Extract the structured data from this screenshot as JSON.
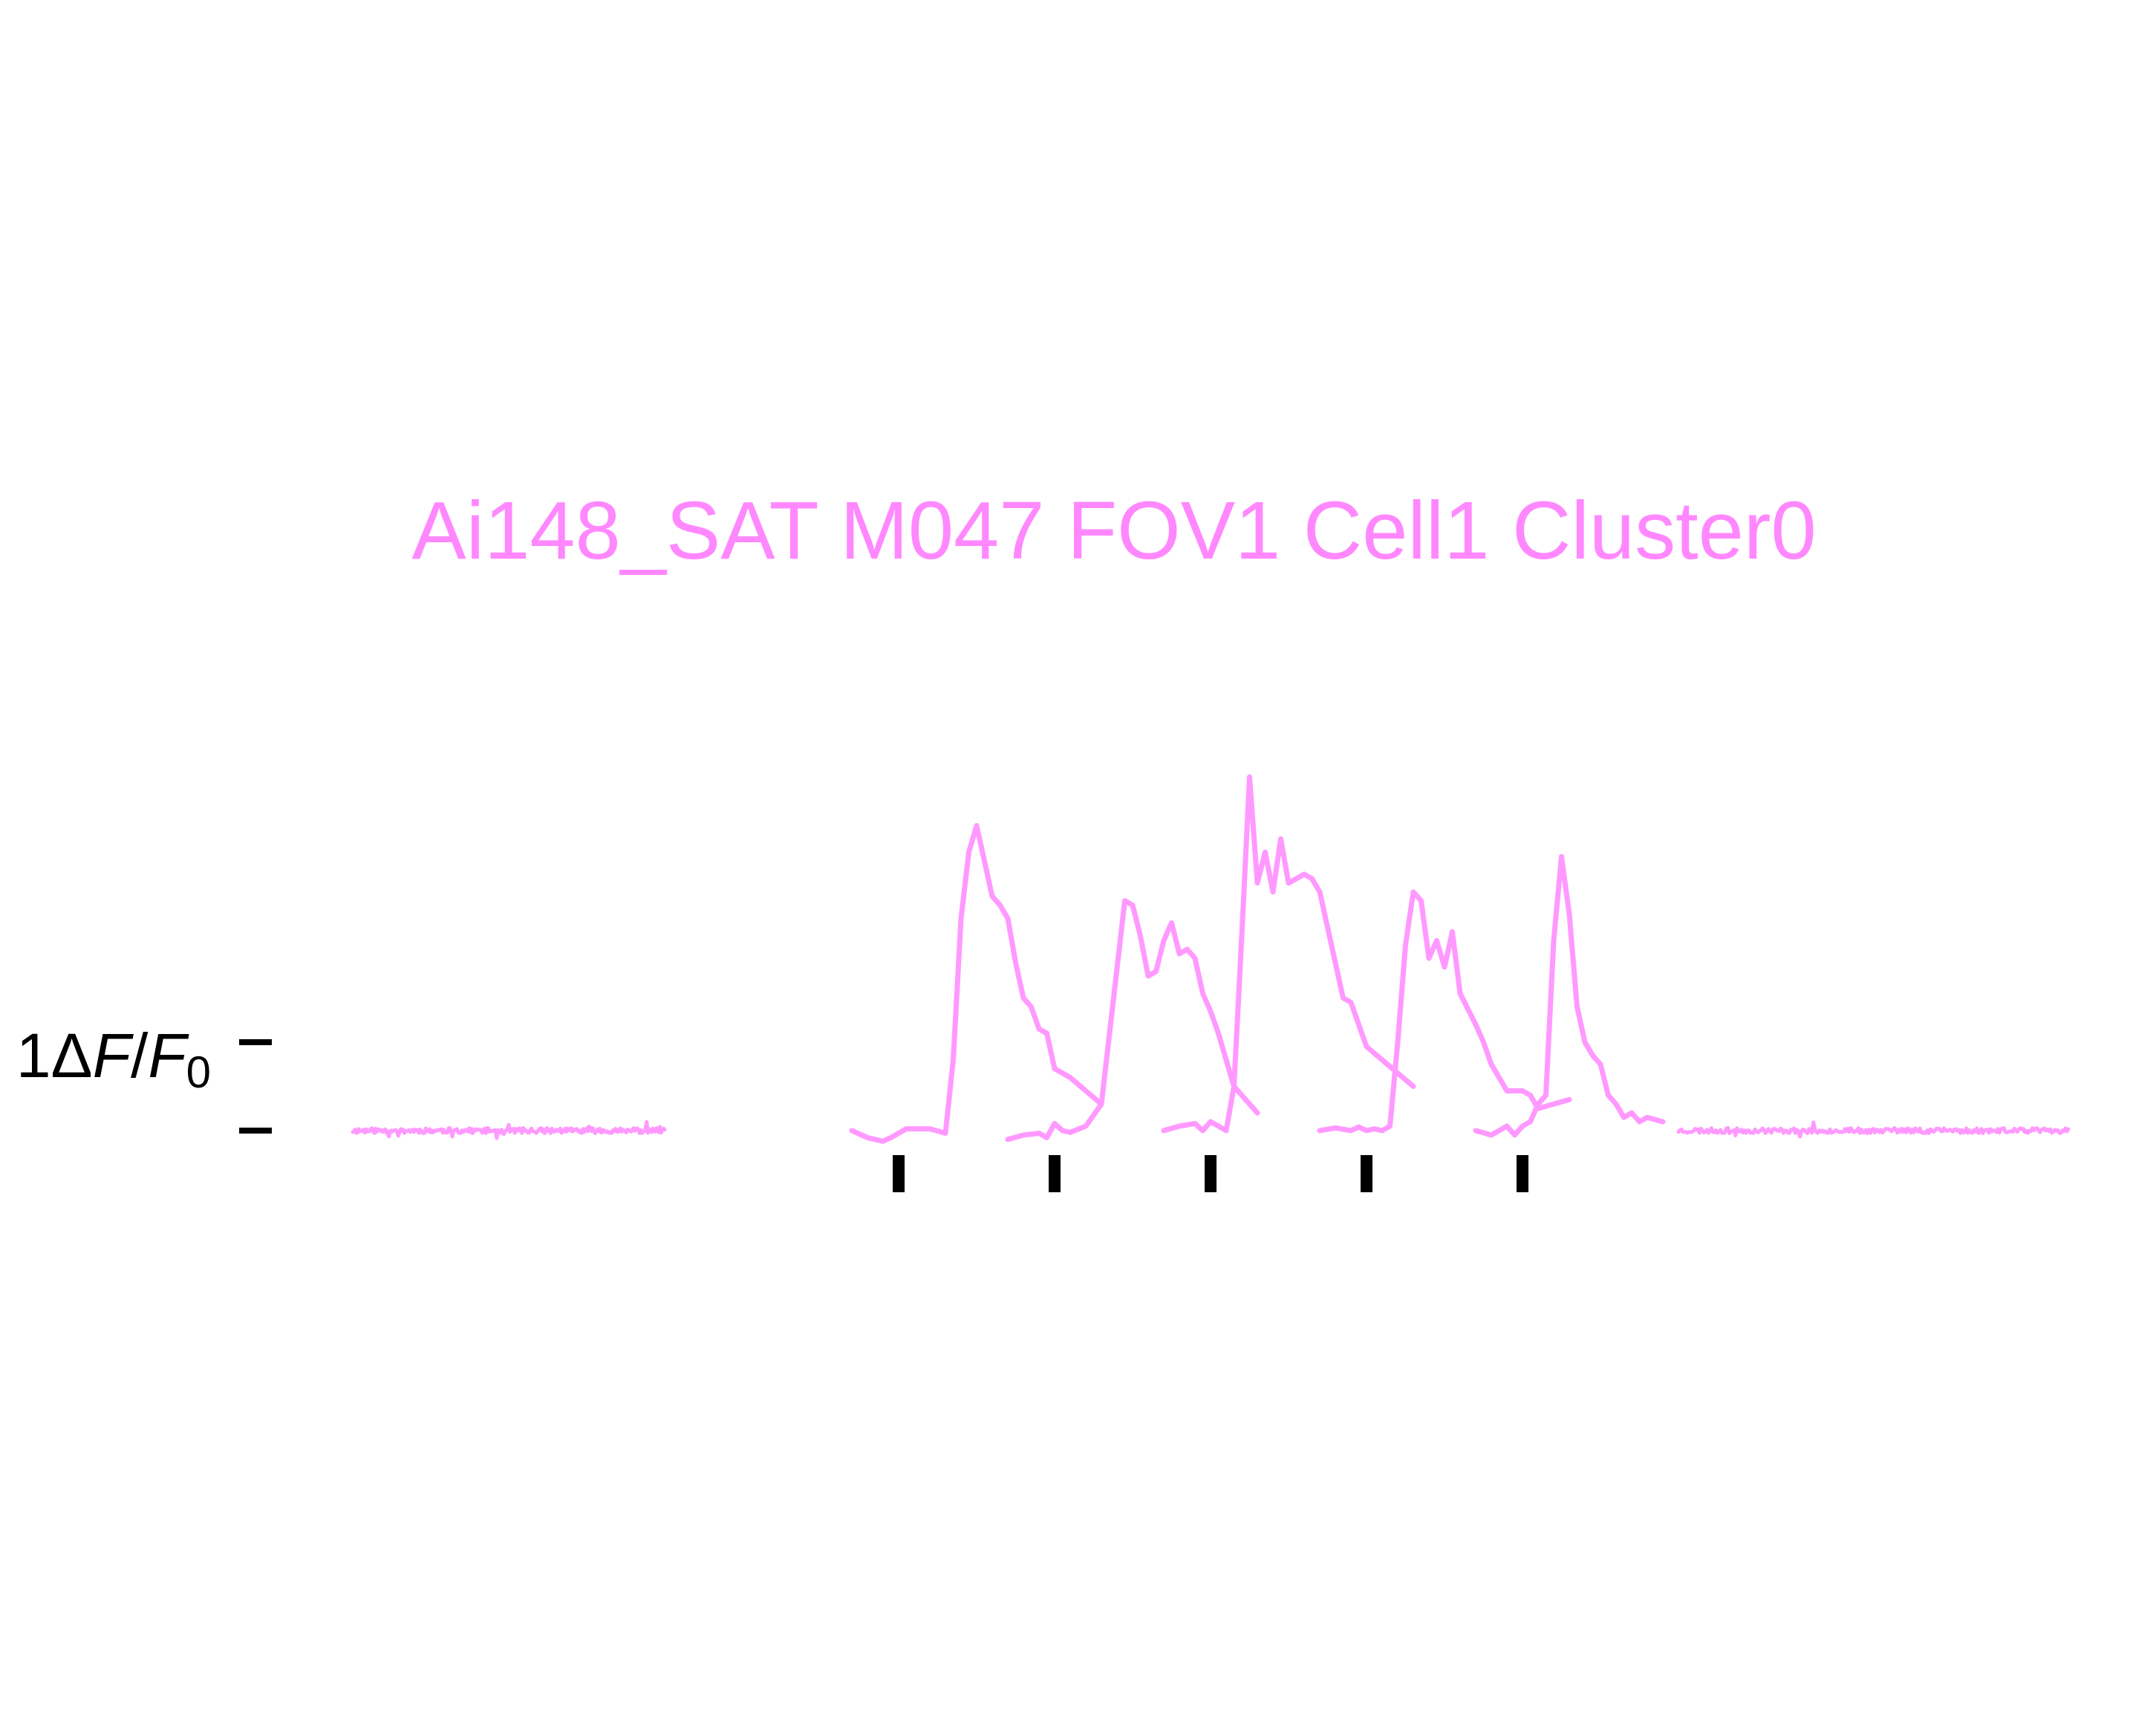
{
  "chart_data": {
    "type": "line",
    "title": "Ai148_SAT M047 FOV1 Cell1 Cluster0",
    "colors": {
      "trace": "#ff99ff",
      "title": "#ff88ff",
      "marks": "#000000"
    },
    "ylabel": {
      "prefix": "1",
      "delta": "Δ",
      "F": "F",
      "slash": "/",
      "F0": "F",
      "sub": "0"
    },
    "scale_bar": {
      "value_dff": 1
    },
    "grid": false,
    "legend": "none",
    "baseline_dff": 0,
    "stimulus_times_s": [
      1,
      2,
      3,
      4,
      5
    ],
    "series": [
      {
        "segment": "baseline-pre",
        "x_range": [
          -2.5,
          -0.5
        ],
        "noise": 0.03,
        "seed": 11
      },
      {
        "segment": "trial-1",
        "x": [
          -0.3,
          -0.2,
          -0.1,
          -0.05,
          0.05,
          0.1,
          0.15,
          0.2,
          0.3,
          0.35,
          0.4,
          0.45,
          0.5,
          0.6,
          0.65,
          0.7,
          0.75,
          0.8,
          0.85,
          0.9,
          0.95,
          1.0,
          1.1,
          1.2,
          1.3
        ],
        "y": [
          0.0,
          -0.08,
          -0.12,
          -0.08,
          0.02,
          0.02,
          0.02,
          0.02,
          -0.03,
          0.8,
          2.4,
          3.15,
          3.45,
          2.65,
          2.55,
          2.4,
          1.9,
          1.5,
          1.4,
          1.15,
          1.1,
          0.7,
          0.6,
          0.45,
          0.3
        ]
      },
      {
        "segment": "trial-2",
        "x": [
          -0.3,
          -0.2,
          -0.1,
          -0.05,
          0.0,
          0.05,
          0.1,
          0.2,
          0.3,
          0.45,
          0.5,
          0.55,
          0.6,
          0.65,
          0.7,
          0.75,
          0.8,
          0.85,
          0.9,
          0.95,
          1.0,
          1.05,
          1.15,
          1.2,
          1.3
        ],
        "y": [
          -0.1,
          -0.05,
          -0.03,
          -0.08,
          0.08,
          0.0,
          -0.02,
          0.05,
          0.3,
          2.6,
          2.55,
          2.2,
          1.75,
          1.8,
          2.15,
          2.35,
          2.0,
          2.05,
          1.95,
          1.55,
          1.35,
          1.1,
          0.5,
          0.4,
          0.2
        ]
      },
      {
        "segment": "trial-3",
        "x": [
          -0.3,
          -0.2,
          -0.1,
          -0.05,
          0.0,
          0.05,
          0.1,
          0.15,
          0.2,
          0.25,
          0.3,
          0.35,
          0.4,
          0.45,
          0.5,
          0.6,
          0.65,
          0.7,
          0.75,
          0.85,
          0.9,
          1.0,
          1.1,
          1.3
        ],
        "y": [
          0.0,
          0.05,
          0.08,
          0.0,
          0.1,
          0.05,
          0.0,
          0.5,
          2.2,
          4.0,
          2.8,
          3.15,
          2.7,
          3.3,
          2.8,
          2.9,
          2.85,
          2.7,
          2.3,
          1.5,
          1.45,
          0.95,
          0.8,
          0.5
        ]
      },
      {
        "segment": "trial-4",
        "x": [
          -0.3,
          -0.2,
          -0.1,
          -0.05,
          0.0,
          0.05,
          0.1,
          0.15,
          0.2,
          0.25,
          0.3,
          0.35,
          0.4,
          0.45,
          0.5,
          0.55,
          0.6,
          0.7,
          0.75,
          0.8,
          0.85,
          0.9,
          1.0,
          1.05,
          1.1,
          1.2,
          1.3
        ],
        "y": [
          0.0,
          0.03,
          0.0,
          0.04,
          0.0,
          0.02,
          0.0,
          0.05,
          1.0,
          2.1,
          2.7,
          2.6,
          1.95,
          2.15,
          1.85,
          2.25,
          1.55,
          1.2,
          1.0,
          0.75,
          0.6,
          0.45,
          0.45,
          0.4,
          0.25,
          0.3,
          0.35
        ]
      },
      {
        "segment": "trial-5",
        "x": [
          -0.3,
          -0.2,
          -0.1,
          -0.05,
          0.0,
          0.05,
          0.1,
          0.15,
          0.2,
          0.25,
          0.3,
          0.35,
          0.4,
          0.45,
          0.5,
          0.55,
          0.6,
          0.65,
          0.7,
          0.75,
          0.8,
          0.9
        ],
        "y": [
          0.0,
          -0.05,
          0.05,
          -0.05,
          0.05,
          0.1,
          0.3,
          0.4,
          2.15,
          3.1,
          2.45,
          1.4,
          1.0,
          0.85,
          0.75,
          0.4,
          0.3,
          0.15,
          0.2,
          0.1,
          0.15,
          0.1
        ]
      },
      {
        "segment": "baseline-post",
        "x_range": [
          6.0,
          8.5
        ],
        "noise": 0.03,
        "seed": 23
      }
    ]
  }
}
